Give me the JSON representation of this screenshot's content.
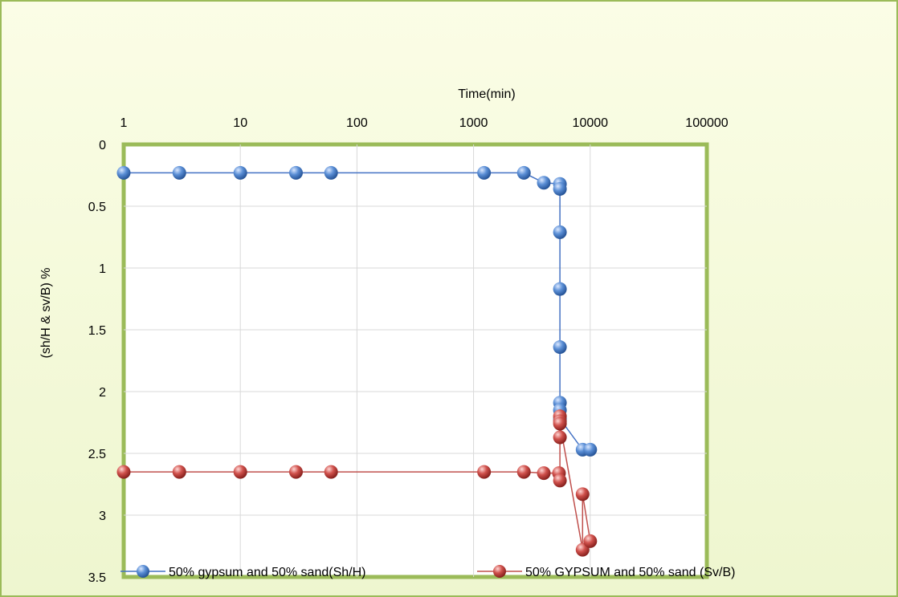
{
  "chart_data": {
    "type": "scatter",
    "title": "",
    "xlabel": "Time(min)",
    "ylabel": "(sh/H & sv/B) %",
    "x_scale": "log",
    "x_ticks": [
      "1",
      "10",
      "100",
      "1000",
      "10000",
      "100000"
    ],
    "x_tick_values": [
      1,
      10,
      100,
      1000,
      10000,
      100000
    ],
    "xlim": [
      1,
      100000
    ],
    "y_ticks": [
      "0",
      "0.5",
      "1",
      "1.5",
      "2",
      "2.5",
      "3",
      "3.5"
    ],
    "y_tick_values": [
      0,
      0.5,
      1,
      1.5,
      2,
      2.5,
      3,
      3.5
    ],
    "ylim": [
      0,
      3.5
    ],
    "y_inverted": true,
    "x_axis_position": "top",
    "grid": true,
    "legend_position": "bottom",
    "series": [
      {
        "name": "50% gypsum and 50% sand(Sh/H)",
        "color": "#4472c4",
        "points": [
          [
            1,
            0.23
          ],
          [
            3,
            0.23
          ],
          [
            10,
            0.23
          ],
          [
            30,
            0.23
          ],
          [
            60,
            0.23
          ],
          [
            1230,
            0.23
          ],
          [
            2700,
            0.23
          ],
          [
            4000,
            0.31
          ],
          [
            5500,
            0.32
          ],
          [
            5500,
            0.36
          ],
          [
            5500,
            0.71
          ],
          [
            5500,
            1.17
          ],
          [
            5500,
            1.64
          ],
          [
            5500,
            2.09
          ],
          [
            5500,
            2.15
          ],
          [
            5500,
            2.22
          ],
          [
            8600,
            2.47
          ],
          [
            10000,
            2.47
          ]
        ]
      },
      {
        "name": "50% GYPSUM and 50% sand (Sv/B)",
        "color": "#c0504d",
        "points": [
          [
            1,
            2.65
          ],
          [
            3,
            2.65
          ],
          [
            10,
            2.65
          ],
          [
            30,
            2.65
          ],
          [
            60,
            2.65
          ],
          [
            1230,
            2.65
          ],
          [
            2700,
            2.65
          ],
          [
            4000,
            2.66
          ],
          [
            5400,
            2.66
          ],
          [
            5500,
            2.72
          ],
          [
            5500,
            2.37
          ],
          [
            5500,
            2.2
          ],
          [
            5500,
            2.24
          ],
          [
            5500,
            2.26
          ],
          [
            8600,
            3.28
          ],
          [
            8600,
            2.83
          ],
          [
            10000,
            3.21
          ]
        ]
      }
    ]
  }
}
